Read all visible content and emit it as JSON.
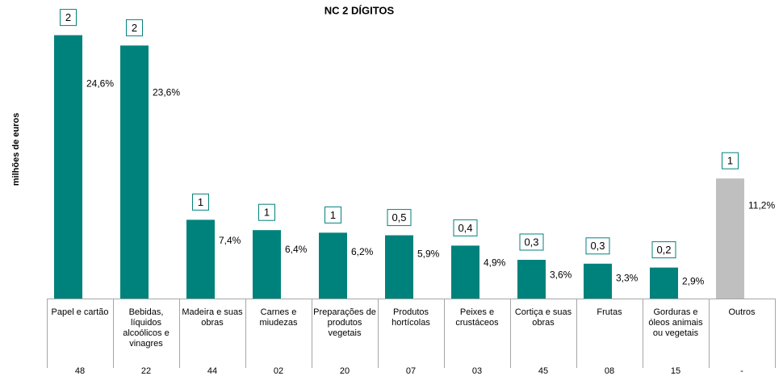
{
  "chart_data": {
    "type": "bar",
    "title": "NC 2 DÍGITOS",
    "ylabel": "milhões de euros",
    "categories": [
      "Papel e cartão",
      "Bebidas, líquidos alcoólicos e vinagres",
      "Madeira e suas obras",
      "Carnes e miudezas",
      "Preparações de produtos vegetais",
      "Produtos hortícolas",
      "Peixes e crustáceos",
      "Cortiça e suas obras",
      "Frutas",
      "Gorduras e óleos animais ou vegetais",
      "Outros"
    ],
    "codes": [
      "48",
      "22",
      "44",
      "02",
      "20",
      "07",
      "03",
      "45",
      "08",
      "15",
      "-"
    ],
    "values": [
      2.04,
      1.96,
      0.61,
      0.53,
      0.51,
      0.49,
      0.41,
      0.3,
      0.27,
      0.24,
      0.93
    ],
    "value_labels": [
      "2",
      "2",
      "1",
      "1",
      "1",
      "0,5",
      "0,4",
      "0,3",
      "0,3",
      "0,2",
      "1"
    ],
    "shares": [
      24.6,
      23.6,
      7.4,
      6.4,
      6.2,
      5.9,
      4.9,
      3.6,
      3.3,
      2.9,
      11.2
    ],
    "share_labels": [
      "24,6%",
      "23,6%",
      "7,4%",
      "6,4%",
      "6,2%",
      "5,9%",
      "4,9%",
      "3,6%",
      "3,3%",
      "2,9%",
      "11,2%"
    ],
    "colors": [
      "#00827c",
      "#00827c",
      "#00827c",
      "#00827c",
      "#00827c",
      "#00827c",
      "#00827c",
      "#00827c",
      "#00827c",
      "#00827c",
      "#bfbfbf"
    ],
    "ylim": [
      0,
      2.3
    ]
  }
}
